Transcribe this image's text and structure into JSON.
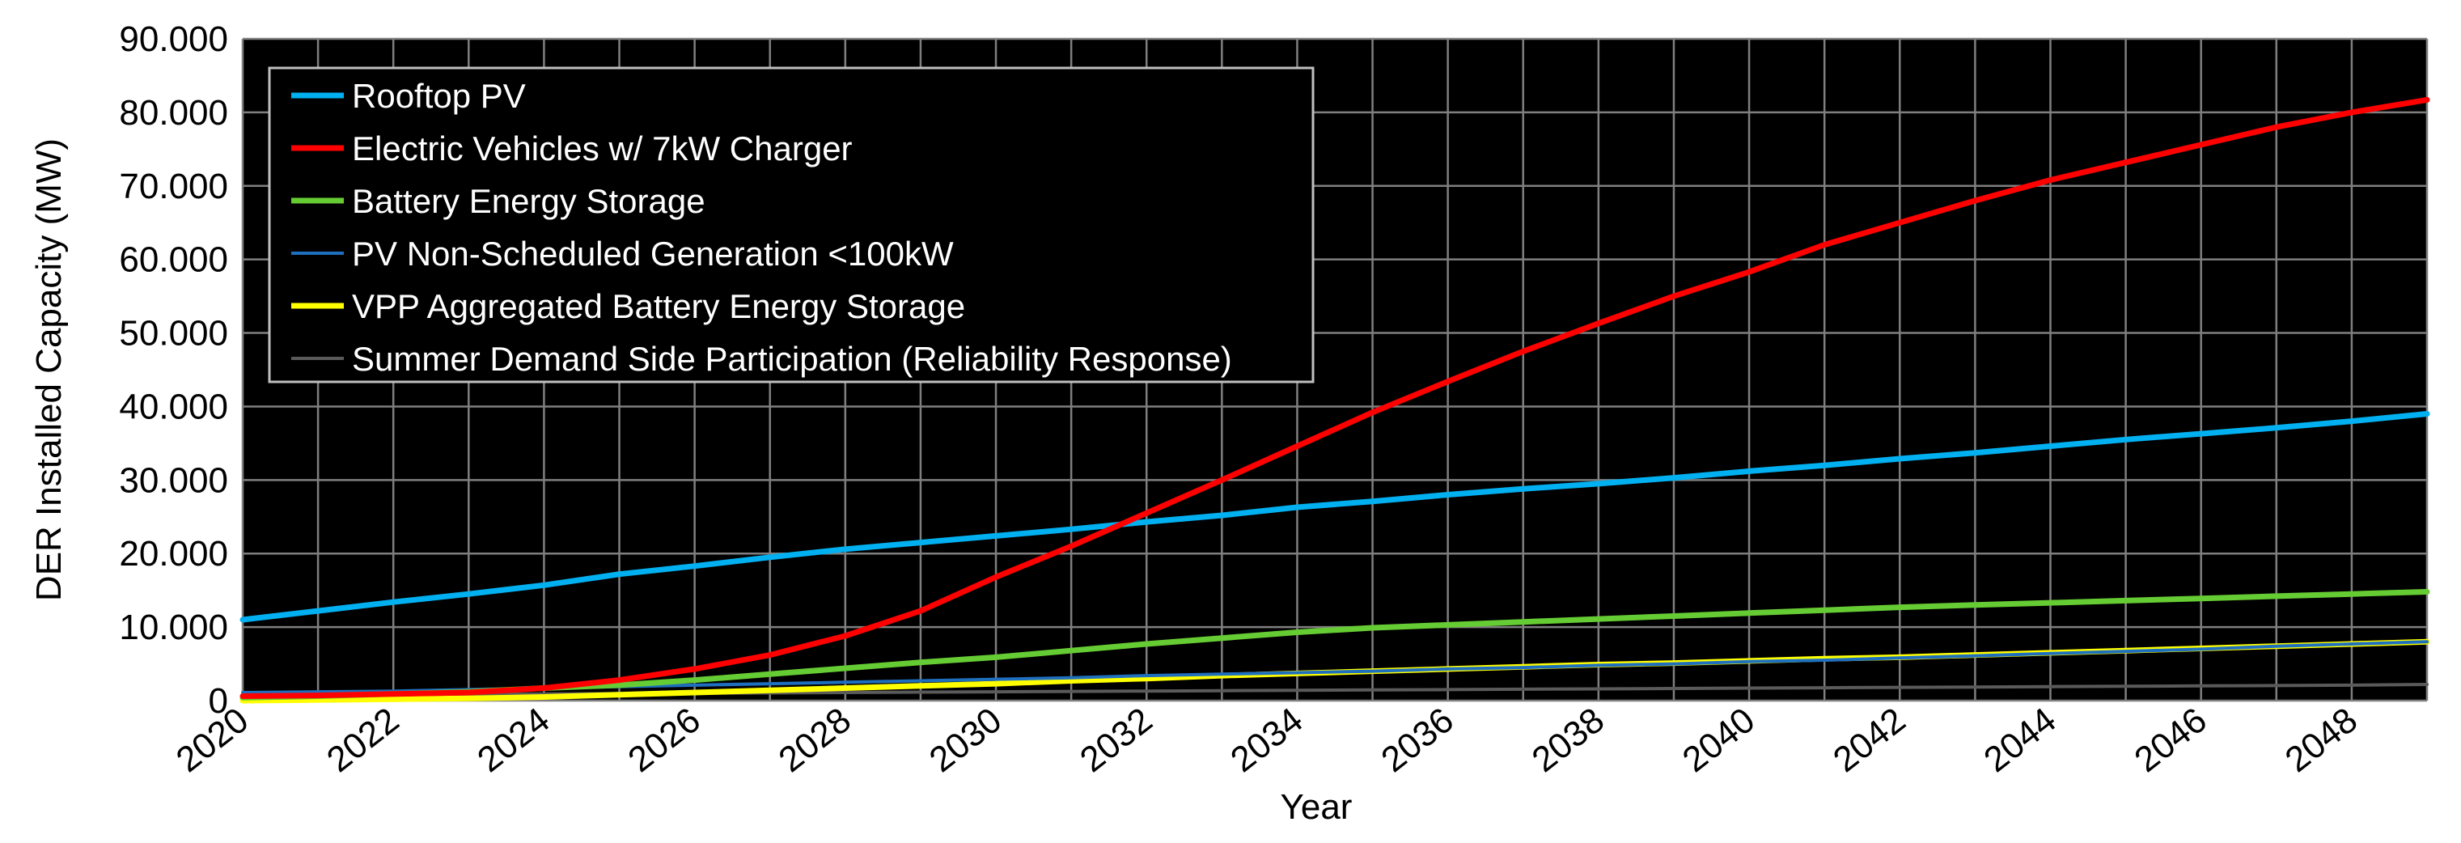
{
  "chart_data": {
    "type": "line",
    "title": "",
    "xlabel": "Year",
    "ylabel": "DER Installed Capacity (MW)",
    "xlim": [
      2020,
      2049
    ],
    "ylim": [
      0,
      90000
    ],
    "y_ticks": [
      {
        "value": 0,
        "label": "0"
      },
      {
        "value": 10000,
        "label": "10.000"
      },
      {
        "value": 20000,
        "label": "20.000"
      },
      {
        "value": 30000,
        "label": "30.000"
      },
      {
        "value": 40000,
        "label": "40.000"
      },
      {
        "value": 50000,
        "label": "50.000"
      },
      {
        "value": 60000,
        "label": "60.000"
      },
      {
        "value": 70000,
        "label": "70.000"
      },
      {
        "value": 80000,
        "label": "80.000"
      },
      {
        "value": 90000,
        "label": "90.000"
      }
    ],
    "x_ticks": [
      2020,
      2022,
      2024,
      2026,
      2028,
      2030,
      2032,
      2034,
      2036,
      2038,
      2040,
      2042,
      2044,
      2046,
      2048
    ],
    "grid": true,
    "background": "#000000",
    "grid_color": "#7f7f7f",
    "legend_position": "top-left",
    "x": [
      2020,
      2021,
      2022,
      2023,
      2024,
      2025,
      2026,
      2027,
      2028,
      2029,
      2030,
      2031,
      2032,
      2033,
      2034,
      2035,
      2036,
      2037,
      2038,
      2039,
      2040,
      2041,
      2042,
      2043,
      2044,
      2045,
      2046,
      2047,
      2048,
      2049
    ],
    "series": [
      {
        "name": "Rooftop PV",
        "color": "#00b0f0",
        "width": 7,
        "values": [
          11000,
          12200,
          13400,
          14500,
          15700,
          17200,
          18300,
          19500,
          20600,
          21500,
          22400,
          23300,
          24300,
          25200,
          26300,
          27100,
          28000,
          28800,
          29500,
          30300,
          31200,
          32000,
          32900,
          33700,
          34600,
          35500,
          36300,
          37100,
          38000,
          39000
        ]
      },
      {
        "name": "Electric Vehicles w/ 7kW Charger",
        "color": "#ff0000",
        "width": 7,
        "values": [
          600,
          700,
          900,
          1100,
          1700,
          2800,
          4300,
          6200,
          8800,
          12200,
          16800,
          21000,
          25500,
          30000,
          34600,
          39200,
          43400,
          47500,
          51300,
          55000,
          58300,
          62000,
          65000,
          68000,
          70800,
          73200,
          75600,
          78000,
          80000,
          81700
        ]
      },
      {
        "name": "Battery Energy Storage",
        "color": "#66cc33",
        "width": 7,
        "values": [
          400,
          600,
          900,
          1200,
          1700,
          2100,
          2800,
          3600,
          4400,
          5200,
          5900,
          6800,
          7700,
          8500,
          9300,
          9900,
          10300,
          10700,
          11100,
          11500,
          11900,
          12300,
          12700,
          13000,
          13300,
          13600,
          13900,
          14200,
          14500,
          14800
        ]
      },
      {
        "name": "PV Non-Scheduled Generation <100kW",
        "color": "#1f6fbf",
        "width": 4,
        "values": [
          1100,
          1200,
          1300,
          1500,
          1700,
          1900,
          2100,
          2300,
          2500,
          2700,
          2900,
          3100,
          3400,
          3600,
          3800,
          4000,
          4300,
          4500,
          4800,
          5000,
          5300,
          5500,
          5800,
          6100,
          6400,
          6700,
          7000,
          7400,
          7700,
          8000
        ]
      },
      {
        "name": "VPP Aggregated Battery Energy Storage",
        "color": "#ffff00",
        "width": 7,
        "values": [
          0,
          100,
          200,
          300,
          500,
          800,
          1100,
          1400,
          1700,
          2000,
          2300,
          2700,
          3000,
          3400,
          3700,
          4000,
          4300,
          4600,
          4900,
          5100,
          5400,
          5700,
          5900,
          6200,
          6500,
          6800,
          7100,
          7400,
          7700,
          8000
        ]
      },
      {
        "name": "Summer Demand Side Participation (Reliability Response)",
        "color": "#5a5a5a",
        "width": 4,
        "values": [
          700,
          750,
          800,
          850,
          900,
          950,
          1000,
          1050,
          1100,
          1150,
          1200,
          1250,
          1300,
          1350,
          1400,
          1450,
          1500,
          1550,
          1600,
          1650,
          1700,
          1750,
          1800,
          1850,
          1900,
          1950,
          2000,
          2050,
          2100,
          2200
        ]
      }
    ]
  }
}
